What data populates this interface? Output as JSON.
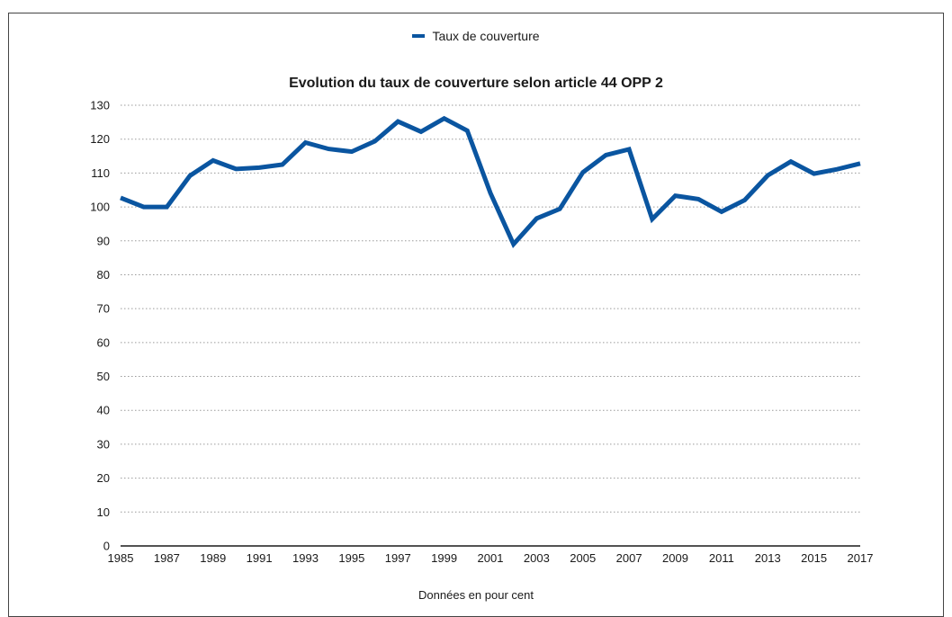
{
  "chart_data": {
    "type": "line",
    "title": "Evolution du taux de couverture selon article 44 OPP 2",
    "xlabel": "",
    "ylabel": "",
    "footnote": "Données en pour cent",
    "ylim": [
      0,
      130
    ],
    "y_ticks": [
      0,
      10,
      20,
      30,
      40,
      50,
      60,
      70,
      80,
      90,
      100,
      110,
      120,
      130
    ],
    "xlim": [
      1985,
      2017
    ],
    "x_tick_labels": [
      "1985",
      "1987",
      "1989",
      "1991",
      "1993",
      "1995",
      "1997",
      "1999",
      "2001",
      "2003",
      "2005",
      "2007",
      "2009",
      "2011",
      "2013",
      "2015",
      "2017"
    ],
    "grid": "horizontal dotted",
    "legend_position": "top-center",
    "x": [
      1985,
      1986,
      1987,
      1988,
      1989,
      1990,
      1991,
      1992,
      1993,
      1994,
      1995,
      1996,
      1997,
      1998,
      1999,
      2000,
      2001,
      2002,
      2003,
      2004,
      2005,
      2006,
      2007,
      2008,
      2009,
      2010,
      2011,
      2012,
      2013,
      2014,
      2015,
      2016,
      2017
    ],
    "series": [
      {
        "name": "Taux de couverture",
        "color": "#0a55a0",
        "values": [
          102.7,
          100.0,
          100.0,
          109.2,
          113.7,
          111.2,
          111.6,
          112.5,
          119.0,
          117.1,
          116.3,
          119.4,
          125.2,
          122.2,
          126.1,
          122.5,
          104.1,
          89.0,
          96.6,
          99.4,
          110.2,
          115.3,
          117.0,
          96.4,
          103.3,
          102.3,
          98.6,
          102.0,
          109.3,
          113.4,
          109.8,
          111.1,
          112.8
        ]
      }
    ]
  }
}
